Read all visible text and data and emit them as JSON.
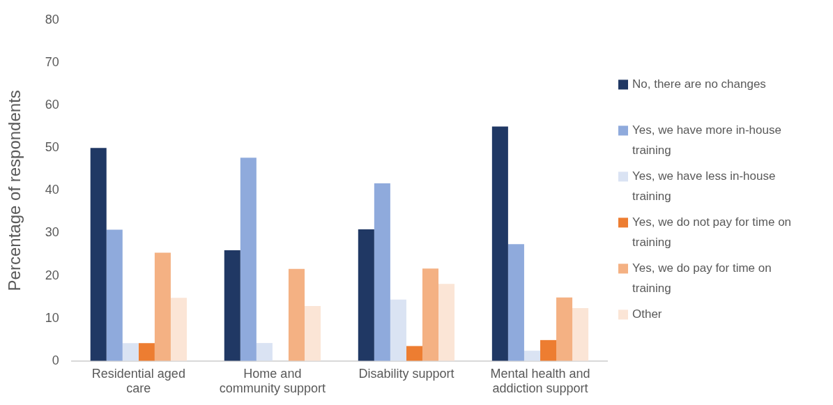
{
  "chart_data": {
    "type": "bar",
    "ylabel": "Percentage of respondents",
    "categories": [
      "Residential aged care",
      "Home and community support",
      "Disability support",
      "Mental health and addiction support"
    ],
    "series": [
      {
        "name": "No, there are no changes",
        "color": "#203864",
        "values": [
          50,
          26,
          30.9,
          55
        ]
      },
      {
        "name": "Yes, we have more in-house training",
        "color": "#8faadc",
        "values": [
          30.8,
          47.7,
          41.7,
          27.4
        ]
      },
      {
        "name": "Yes, we have less in-house training",
        "color": "#dae3f3",
        "values": [
          4.2,
          4.2,
          14.4,
          2.4
        ]
      },
      {
        "name": "Yes, we do not pay for time on training",
        "color": "#ed7d31",
        "values": [
          4.2,
          0,
          3.5,
          4.9
        ]
      },
      {
        "name": "Yes, we do pay for time on training",
        "color": "#f4b183",
        "values": [
          25.4,
          21.6,
          21.7,
          14.9
        ]
      },
      {
        "name": "Other",
        "color": "#fbe5d6",
        "values": [
          14.8,
          12.9,
          18.1,
          12.4
        ]
      }
    ],
    "ylim": [
      0,
      80
    ],
    "yticks": [
      0,
      10,
      20,
      30,
      40,
      50,
      60,
      70,
      80
    ],
    "legend": "right"
  }
}
